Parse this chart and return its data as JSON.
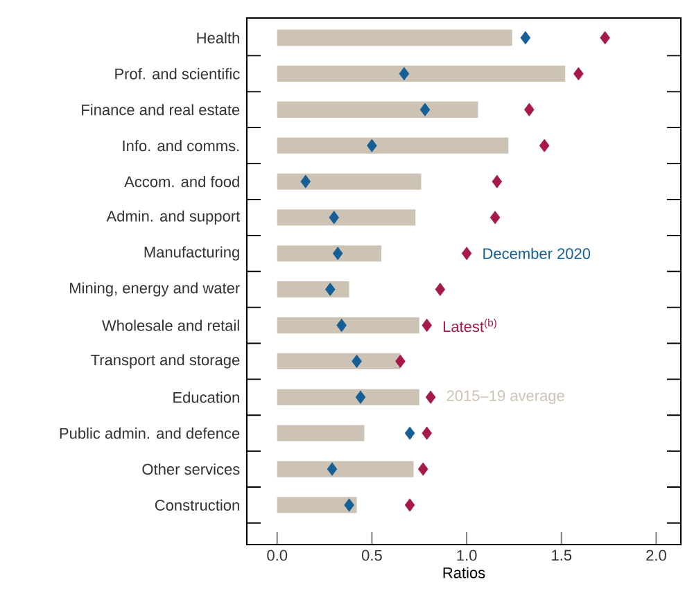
{
  "chart_data": {
    "type": "bar",
    "orientation": "horizontal",
    "categories": [
      "Health",
      "Prof. and scientific",
      "Finance and real estate",
      "Info. and comms.",
      "Accom. and food",
      "Admin. and support",
      "Manufacturing",
      "Mining, energy and water",
      "Wholesale and retail",
      "Transport and storage",
      "Education",
      "Public admin. and defence",
      "Other services",
      "Construction"
    ],
    "series": [
      {
        "name": "2015–19 average",
        "color": "#cdc3b5",
        "values": [
          1.24,
          1.52,
          1.06,
          1.22,
          0.76,
          0.73,
          0.55,
          0.38,
          0.75,
          0.65,
          0.75,
          0.46,
          0.72,
          0.42
        ]
      },
      {
        "name": "December 2020",
        "type": "scatter",
        "color": "#155f96",
        "values": [
          1.31,
          0.67,
          0.78,
          0.5,
          0.15,
          0.3,
          0.32,
          0.28,
          0.34,
          0.42,
          0.44,
          0.7,
          0.29,
          0.38
        ]
      },
      {
        "name": "Latest$^{(b)}$",
        "type": "scatter",
        "color": "#a6194b",
        "values": [
          1.73,
          1.59,
          1.33,
          1.41,
          1.16,
          1.15,
          1.0,
          0.86,
          0.79,
          0.65,
          0.81,
          0.79,
          0.77,
          0.7
        ]
      }
    ],
    "xlabel": "Ratios",
    "xlim": [
      -0.16,
      2.13
    ],
    "xticks": [
      {
        "value": 0,
        "label": "0.0"
      },
      0.5,
      {
        "value": 1,
        "label": "1.0"
      },
      1.5,
      {
        "value": 2,
        "label": "2.0"
      }
    ],
    "marker": "diamond"
  }
}
